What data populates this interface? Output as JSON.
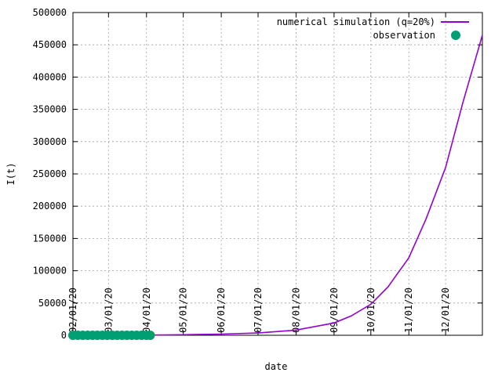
{
  "chart_data": {
    "type": "line",
    "title": "",
    "xlabel": "date",
    "ylabel": "I(t)",
    "ylim": [
      0,
      500000
    ],
    "xlim": [
      "2020-02-01",
      "2020-12-31"
    ],
    "y_ticks": [
      0,
      50000,
      100000,
      150000,
      200000,
      250000,
      300000,
      350000,
      400000,
      450000,
      500000
    ],
    "y_tick_labels": [
      "0",
      "50000",
      "100000",
      "150000",
      "200000",
      "250000",
      "300000",
      "350000",
      "400000",
      "450000",
      "500000"
    ],
    "x_ticks": [
      "2020-02-01",
      "2020-03-01",
      "2020-04-01",
      "2020-05-01",
      "2020-06-01",
      "2020-07-01",
      "2020-08-01",
      "2020-09-01",
      "2020-10-01",
      "2020-11-01",
      "2020-12-01"
    ],
    "x_tick_labels": [
      "02/01/20",
      "03/01/20",
      "04/01/20",
      "05/01/20",
      "06/01/20",
      "07/01/20",
      "08/01/20",
      "09/01/20",
      "10/01/20",
      "11/01/20",
      "12/01/20"
    ],
    "grid": true,
    "legend_position": "top-right",
    "series": [
      {
        "name": "numerical simulation (q=20%)",
        "style": "line",
        "color": "#9400d3",
        "x": [
          "2020-02-01",
          "2020-03-01",
          "2020-04-01",
          "2020-05-01",
          "2020-06-01",
          "2020-07-01",
          "2020-08-01",
          "2020-09-01",
          "2020-09-15",
          "2020-10-01",
          "2020-10-15",
          "2020-11-01",
          "2020-11-15",
          "2020-12-01",
          "2020-12-15",
          "2020-12-31"
        ],
        "y": [
          0,
          100,
          300,
          800,
          1800,
          3500,
          8000,
          19000,
          30000,
          48000,
          75000,
          120000,
          180000,
          260000,
          360000,
          465000
        ]
      },
      {
        "name": "observation",
        "style": "points",
        "color": "#009e73",
        "x": [
          "2020-02-01",
          "2020-02-05",
          "2020-02-09",
          "2020-02-13",
          "2020-02-17",
          "2020-02-21",
          "2020-02-25",
          "2020-02-29",
          "2020-03-04",
          "2020-03-08",
          "2020-03-12",
          "2020-03-16",
          "2020-03-20",
          "2020-03-24",
          "2020-03-28",
          "2020-04-01",
          "2020-04-04"
        ],
        "y": [
          0,
          0,
          0,
          0,
          0,
          0,
          0,
          0,
          0,
          0,
          0,
          0,
          0,
          0,
          0,
          0,
          0
        ]
      }
    ]
  }
}
